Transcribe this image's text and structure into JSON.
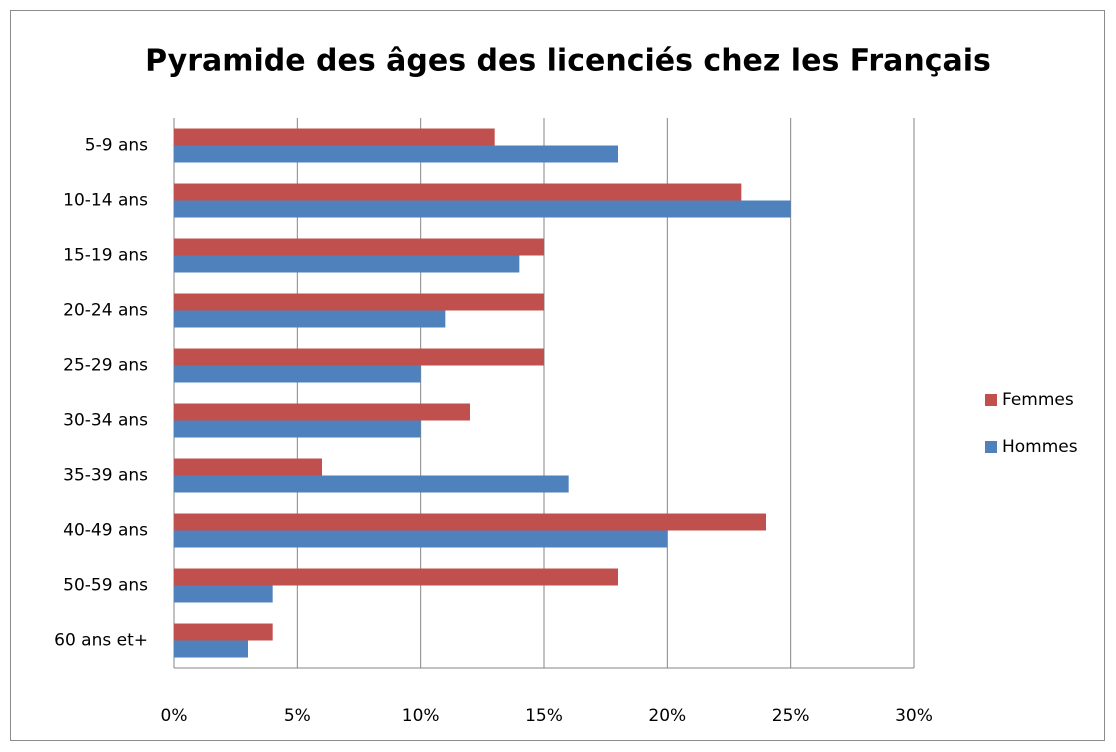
{
  "chart_data": {
    "type": "bar",
    "orientation": "horizontal",
    "title": "Pyramide des âges des licenciés chez les Français",
    "categories": [
      "5-9 ans",
      "10-14 ans",
      "15-19 ans",
      "20-24 ans",
      "25-29 ans",
      "30-34 ans",
      "35-39 ans",
      "40-49 ans",
      "50-59 ans",
      "60 ans et+"
    ],
    "series": [
      {
        "name": "Femmes",
        "color": "#c0504d",
        "values": [
          13,
          23,
          15,
          15,
          15,
          12,
          6,
          24,
          18,
          4
        ]
      },
      {
        "name": "Hommes",
        "color": "#4f81bd",
        "values": [
          18,
          25,
          14,
          11,
          10,
          10,
          16,
          20,
          4,
          3
        ]
      }
    ],
    "xlim": [
      0,
      30
    ],
    "xticks": [
      {
        "value": 0,
        "label": "0%"
      },
      {
        "value": 5,
        "label": "5%"
      },
      {
        "value": 10,
        "label": "10%"
      },
      {
        "value": 15,
        "label": "15%"
      },
      {
        "value": 20,
        "label": "20%"
      },
      {
        "value": 25,
        "label": "25%"
      },
      {
        "value": 30,
        "label": "30%"
      }
    ],
    "grid": true,
    "legend": "right"
  }
}
